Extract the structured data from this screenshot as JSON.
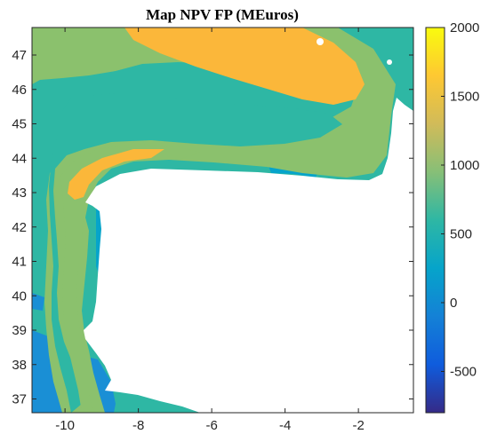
{
  "chart_data": {
    "type": "heatmap",
    "title": "Map NPV FP (MEuros)",
    "xlabel": "",
    "ylabel": "",
    "xlim": [
      -10.9,
      -0.5
    ],
    "ylim": [
      36.6,
      47.8
    ],
    "x_ticks": [
      -10,
      -8,
      -6,
      -4,
      -2
    ],
    "y_ticks": [
      37,
      38,
      39,
      40,
      41,
      42,
      43,
      44,
      45,
      46,
      47
    ],
    "x_tick_labels": [
      "-10",
      "-8",
      "-6",
      "-4",
      "-2"
    ],
    "y_tick_labels": [
      "37",
      "38",
      "39",
      "40",
      "41",
      "42",
      "43",
      "44",
      "45",
      "46",
      "47"
    ],
    "colorbar": {
      "range": [
        -800,
        2000
      ],
      "ticks": [
        -500,
        0,
        500,
        1000,
        1500,
        2000
      ],
      "tick_labels": [
        "-500",
        "0",
        "500",
        "1000",
        "1500",
        "2000"
      ],
      "colormap": "parula",
      "stops": [
        "#352a87",
        "#0f5cdd",
        "#1481d6",
        "#06a4ca",
        "#2eb7a4",
        "#87bf77",
        "#d1bb59",
        "#fec832",
        "#f9fb0e"
      ]
    },
    "levels": {
      "teal": 700,
      "light_green": 1050,
      "orange": 1600,
      "blue": 100
    },
    "grid": false,
    "land_color": "#ffffff"
  }
}
